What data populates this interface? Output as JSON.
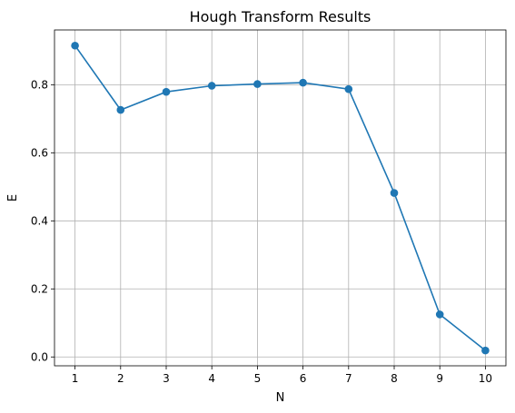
{
  "chart_data": {
    "type": "line",
    "title": "Hough Transform Results",
    "xlabel": "N",
    "ylabel": "E",
    "x": [
      1,
      2,
      3,
      4,
      5,
      6,
      7,
      8,
      9,
      10
    ],
    "series": [
      {
        "values": [
          0.915,
          0.726,
          0.779,
          0.797,
          0.802,
          0.806,
          0.787,
          0.482,
          0.125,
          0.019
        ],
        "color": "#1f77b4",
        "marker": "circle"
      }
    ],
    "xticks": [
      "1",
      "2",
      "3",
      "4",
      "5",
      "6",
      "7",
      "8",
      "9",
      "10"
    ],
    "yticks": [
      "0.0",
      "0.2",
      "0.4",
      "0.6",
      "0.8"
    ],
    "xlim": [
      0.55,
      10.45
    ],
    "ylim": [
      -0.026,
      0.961
    ],
    "grid": true,
    "legend": "none"
  }
}
